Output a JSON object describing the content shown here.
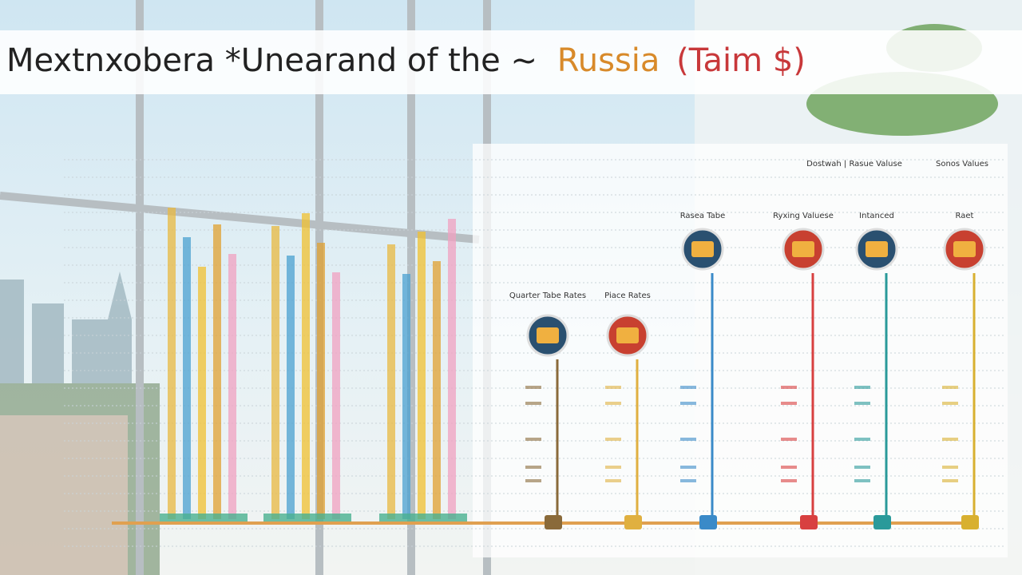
{
  "header": {
    "title": "Mextnxobera *Unearand of the ~",
    "title_highlight": "Russia",
    "title_unit": "(Taim $)"
  },
  "panel": {
    "top_labels": [
      "Dostwah | Rasue Valuse",
      "Sonos Values"
    ],
    "columns": [
      {
        "label": "Quarter Tabe Rates"
      },
      {
        "label": "Piace Rates"
      },
      {
        "label": "Rasea Tabe"
      },
      {
        "label": "Ryxing Valuese"
      },
      {
        "label": "Intanced"
      },
      {
        "label": "Raet"
      }
    ]
  }
}
